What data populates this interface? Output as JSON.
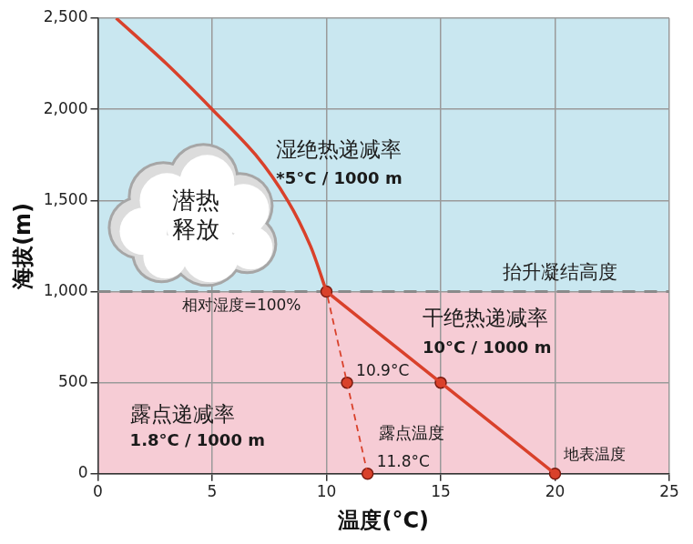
{
  "chart_data": {
    "type": "line",
    "x_label": "温度(°C)",
    "y_label": "海拔(m)",
    "xlim": [
      0,
      25
    ],
    "xticks": [
      0,
      5,
      10,
      15,
      20,
      25
    ],
    "ylim": [
      0,
      2500
    ],
    "yticks": [
      0,
      500,
      1000,
      1500,
      2000,
      2500
    ],
    "grid": true,
    "bands": [
      {
        "from": 0,
        "to": 1000,
        "color": "#f6ccd5"
      },
      {
        "from": 1000,
        "to": 2500,
        "color": "#c9e7f0"
      }
    ],
    "reference_line": {
      "y": 1000,
      "color": "#8a8a8a",
      "line_style": "dashed",
      "label": "抬升凝结高度"
    },
    "series": [
      {
        "color": "#d9412b",
        "line_style": "solid",
        "x": [
          20,
          15,
          10
        ],
        "values": [
          0,
          500,
          1000
        ]
      },
      {
        "color": "#d9412b",
        "line_style": "solid",
        "x": [
          10,
          9.3,
          8.3,
          6.9,
          5,
          3,
          0.8
        ],
        "values": [
          1000,
          1250,
          1500,
          1750,
          2000,
          2250,
          2500
        ]
      },
      {
        "color": "#d9412b",
        "line_style": "dashed",
        "x": [
          11.8,
          10.9,
          10
        ],
        "values": [
          0,
          500,
          1000
        ]
      }
    ],
    "points": [
      {
        "x": 20,
        "y": 0,
        "label": "地表温度"
      },
      {
        "x": 15,
        "y": 500
      },
      {
        "x": 10,
        "y": 1000,
        "label": "相对湿度=100%"
      },
      {
        "x": 10.9,
        "y": 500,
        "label": "10.9°C"
      },
      {
        "x": 11.8,
        "y": 0,
        "label": "11.8°C"
      }
    ],
    "marker": "circle",
    "color": "#d9412b",
    "annotations": [
      "湿绝热递减率",
      "*5°C / 1000 m",
      "潜热\n释放",
      "干绝热递减率",
      "10°C / 1000 m",
      "露点递减率",
      "1.8°C / 1000 m",
      "露点温度"
    ]
  }
}
